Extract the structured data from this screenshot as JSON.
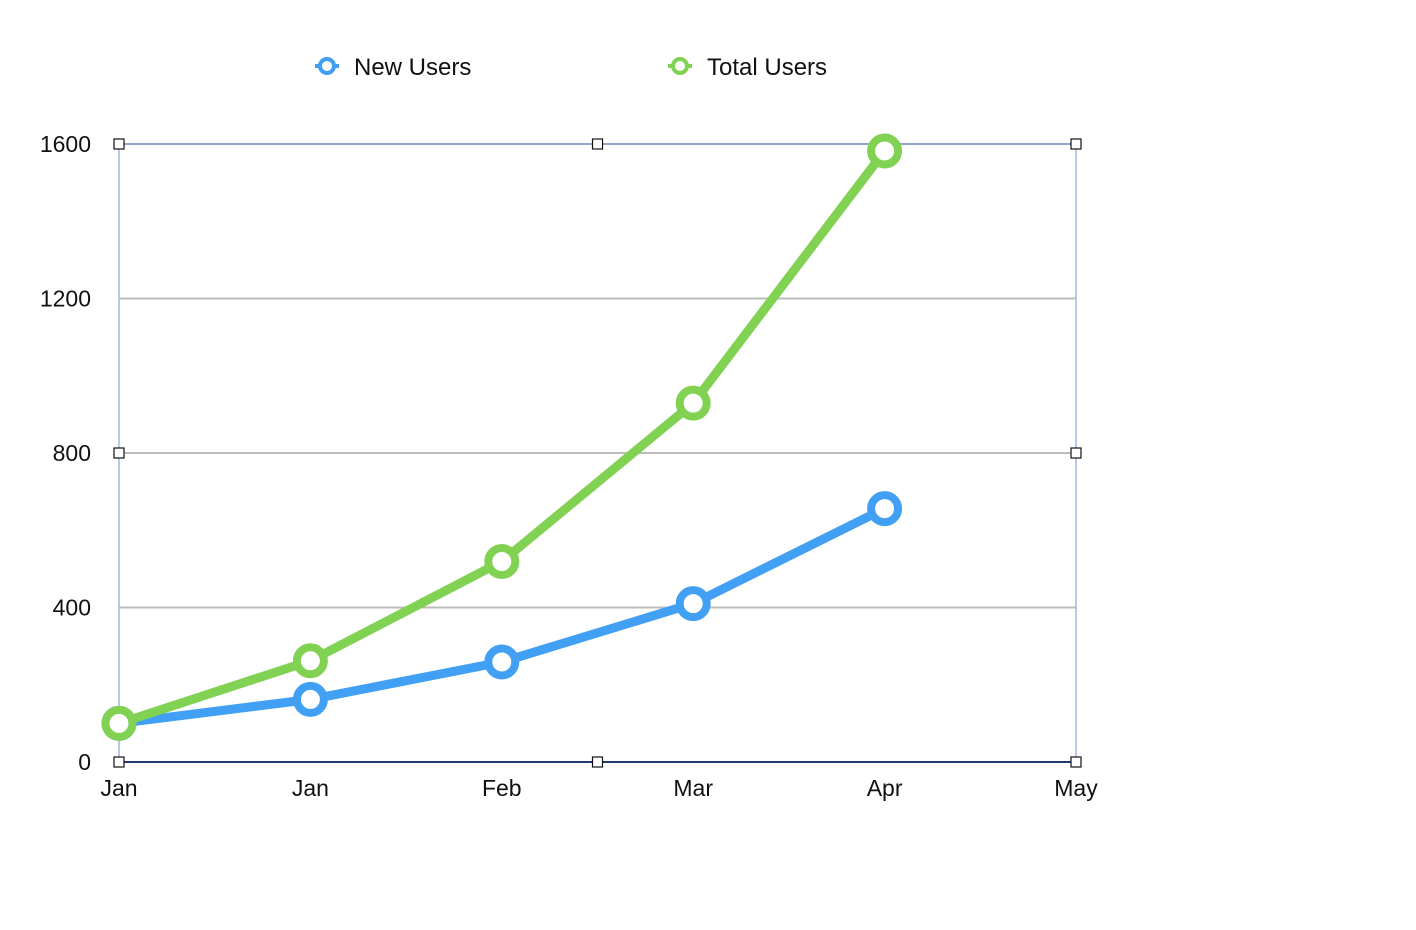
{
  "chart_data": {
    "type": "line",
    "categories": [
      "Jan",
      "Jan",
      "Feb",
      "Mar",
      "Apr",
      "May"
    ],
    "series": [
      {
        "name": "New Users",
        "color": "#41a0f3",
        "values": [
          100,
          162,
          259,
          410,
          656,
          null
        ]
      },
      {
        "name": "Total Users",
        "color": "#81d152",
        "values": [
          100,
          262,
          519,
          929,
          1582,
          null
        ]
      }
    ],
    "yticks": [
      0,
      400,
      800,
      1200,
      1600
    ],
    "ylim": [
      0,
      1600
    ],
    "grid": true,
    "legend": "top",
    "selected": true
  }
}
